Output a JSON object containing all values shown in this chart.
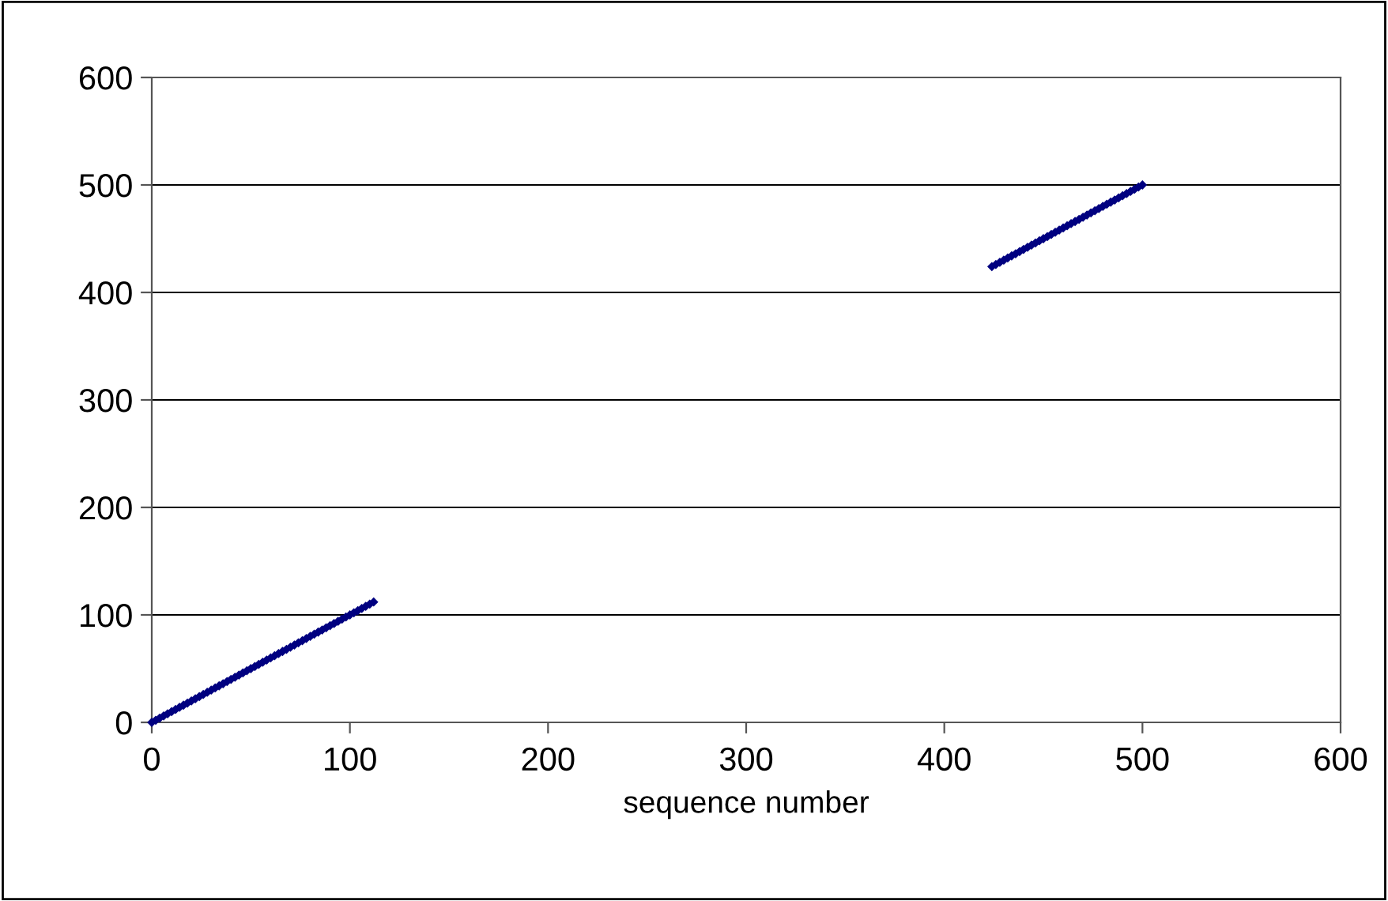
{
  "chart_data": {
    "type": "scatter",
    "xlabel": "sequence number",
    "xlim": [
      0,
      600
    ],
    "xticks": [
      0,
      100,
      200,
      300,
      400,
      500,
      600
    ],
    "ylim": [
      0,
      600
    ],
    "yticks": [
      0,
      100,
      200,
      300,
      400,
      500,
      600
    ],
    "grid": "y",
    "marker": "diamond",
    "legend": false,
    "series": [
      {
        "color": "#000080",
        "x": [
          0,
          2,
          4,
          6,
          8,
          10,
          12,
          14,
          16,
          18,
          20,
          22,
          24,
          26,
          28,
          30,
          32,
          34,
          36,
          38,
          40,
          42,
          44,
          46,
          48,
          50,
          52,
          54,
          56,
          58,
          60,
          62,
          64,
          66,
          68,
          70,
          72,
          74,
          76,
          78,
          80,
          82,
          84,
          86,
          88,
          90,
          92,
          94,
          96,
          98,
          100,
          102,
          104,
          106,
          108,
          110,
          112,
          424,
          426,
          428,
          430,
          432,
          434,
          436,
          438,
          440,
          442,
          444,
          446,
          448,
          450,
          452,
          454,
          456,
          458,
          460,
          462,
          464,
          466,
          468,
          470,
          472,
          474,
          476,
          478,
          480,
          482,
          484,
          486,
          488,
          490,
          492,
          494,
          496,
          498,
          500
        ],
        "values": [
          0,
          2,
          4,
          6,
          8,
          10,
          12,
          14,
          16,
          18,
          20,
          22,
          24,
          26,
          28,
          30,
          32,
          34,
          36,
          38,
          40,
          42,
          44,
          46,
          48,
          50,
          52,
          54,
          56,
          58,
          60,
          62,
          64,
          66,
          68,
          70,
          72,
          74,
          76,
          78,
          80,
          82,
          84,
          86,
          88,
          90,
          92,
          94,
          96,
          98,
          100,
          102,
          104,
          106,
          108,
          110,
          112,
          424,
          426,
          428,
          430,
          432,
          434,
          436,
          438,
          440,
          442,
          444,
          446,
          448,
          450,
          452,
          454,
          456,
          458,
          460,
          462,
          464,
          466,
          468,
          470,
          472,
          474,
          476,
          478,
          480,
          482,
          484,
          486,
          488,
          490,
          492,
          494,
          496,
          498,
          500
        ]
      }
    ]
  }
}
